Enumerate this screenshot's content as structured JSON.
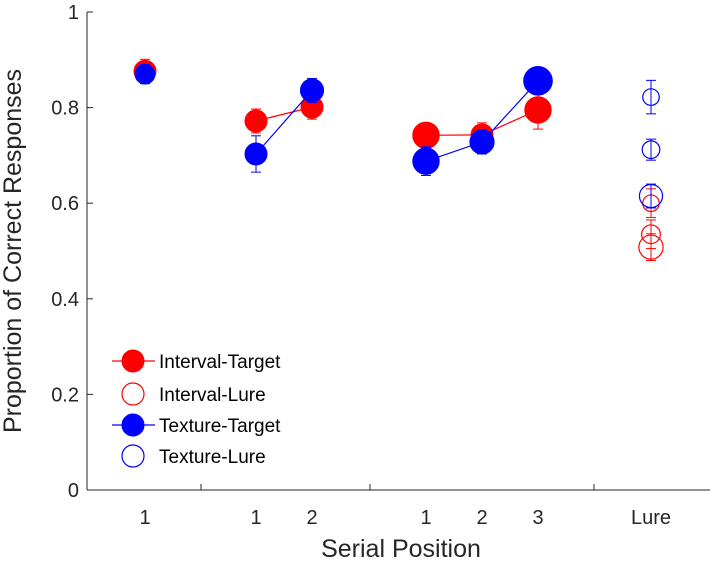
{
  "chart_data": {
    "type": "scatter",
    "xlabel": "Serial Position",
    "ylabel": "Proportion of Correct Responses",
    "ylim": [
      0,
      1
    ],
    "yticks": [
      0,
      0.2,
      0.4,
      0.6,
      0.8,
      1
    ],
    "ytick_labels": [
      "0",
      "0.2",
      "0.4",
      "0.6",
      "0.8",
      "1"
    ],
    "grid": false,
    "legend_position": "bottom-left",
    "categories": [
      "1",
      "1",
      "2",
      "1",
      "2",
      "3",
      "Lure"
    ],
    "groups": [
      {
        "positions": [
          "1"
        ]
      },
      {
        "positions": [
          "1",
          "2"
        ]
      },
      {
        "positions": [
          "1",
          "2",
          "3"
        ]
      },
      {
        "positions": [
          "Lure"
        ]
      }
    ],
    "series": [
      {
        "name": "Interval-Target",
        "color": "#ff0000",
        "marker": "filled-circle",
        "groups": [
          {
            "x": [
              1
            ],
            "y": [
              0.876
            ],
            "err": [
              0.025
            ],
            "size": [
              1
            ]
          },
          {
            "x": [
              1,
              2
            ],
            "y": [
              0.772,
              0.801
            ],
            "err": [
              0.025,
              0.025
            ],
            "size": [
              1,
              1
            ]
          },
          {
            "x": [
              1,
              2,
              3
            ],
            "y": [
              0.742,
              0.743,
              0.795
            ],
            "err": [
              0.025,
              0.025,
              0.04
            ],
            "size": [
              1.2,
              1,
              1.2
            ]
          }
        ]
      },
      {
        "name": "Interval-Lure",
        "color": "#ff0000",
        "marker": "open-circle",
        "lure": {
          "y": [
            0.6,
            0.535,
            0.508
          ],
          "err": [
            0.03,
            0.03,
            0.028
          ],
          "size": [
            0.75,
            0.85,
            1.1
          ]
        }
      },
      {
        "name": "Texture-Target",
        "color": "#0000ff",
        "marker": "filled-circle",
        "groups": [
          {
            "x": [
              1
            ],
            "y": [
              0.87
            ],
            "err": [
              0.02
            ],
            "size": [
              0.9
            ]
          },
          {
            "x": [
              1,
              2
            ],
            "y": [
              0.703,
              0.836
            ],
            "err": [
              0.038,
              0.025
            ],
            "size": [
              1,
              1.05
            ]
          },
          {
            "x": [
              1,
              2,
              3
            ],
            "y": [
              0.688,
              0.728,
              0.856
            ],
            "err": [
              0.03,
              0.025,
              0.025
            ],
            "size": [
              1.2,
              1.1,
              1.3
            ]
          }
        ]
      },
      {
        "name": "Texture-Lure",
        "color": "#0000ff",
        "marker": "open-circle",
        "lure": {
          "y": [
            0.822,
            0.712,
            0.615
          ],
          "err": [
            0.035,
            0.022,
            0.025
          ],
          "size": [
            0.75,
            0.8,
            1.05
          ]
        }
      }
    ]
  }
}
